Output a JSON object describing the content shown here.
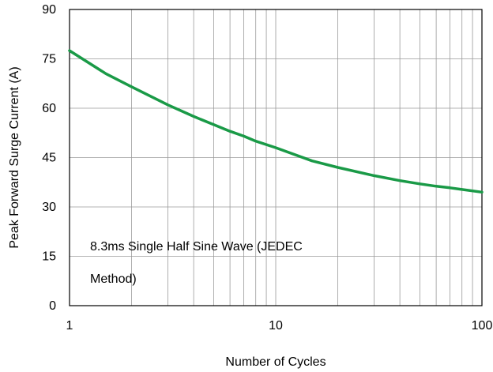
{
  "chart_data": {
    "type": "line",
    "xlabel": "Number of Cycles",
    "ylabel": "Peak Forward Surge Current (A)",
    "xscale": "log",
    "xlim": [
      1,
      100
    ],
    "ylim": [
      0,
      90
    ],
    "xticks": [
      1,
      10,
      100
    ],
    "yticks": [
      0,
      15,
      30,
      45,
      60,
      75,
      90
    ],
    "grid": true,
    "annotation_lines": [
      "8.3ms Single Half Sine Wave (JEDEC",
      "Method)"
    ],
    "series_color": "#1a9a47",
    "series": [
      {
        "x": [
          1,
          1.5,
          2,
          3,
          4,
          5,
          6,
          7,
          8,
          10,
          15,
          20,
          30,
          40,
          50,
          60,
          70,
          80,
          100
        ],
        "values": [
          77.5,
          70.5,
          66.5,
          61,
          57.5,
          55,
          53,
          51.5,
          50,
          48,
          44,
          42,
          39.5,
          38,
          37,
          36.3,
          35.8,
          35.3,
          34.5
        ]
      }
    ]
  }
}
